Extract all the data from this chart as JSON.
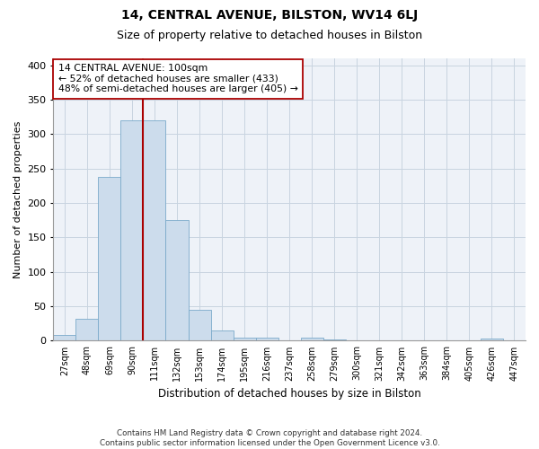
{
  "title": "14, CENTRAL AVENUE, BILSTON, WV14 6LJ",
  "subtitle": "Size of property relative to detached houses in Bilston",
  "xlabel": "Distribution of detached houses by size in Bilston",
  "ylabel": "Number of detached properties",
  "bar_color": "#ccdcec",
  "bar_edge_color": "#7aaaca",
  "grid_color": "#c8d4e0",
  "background_color": "#eef2f8",
  "vline_color": "#aa0000",
  "vline_x_index": 3.5,
  "categories": [
    "27sqm",
    "48sqm",
    "69sqm",
    "90sqm",
    "111sqm",
    "132sqm",
    "153sqm",
    "174sqm",
    "195sqm",
    "216sqm",
    "237sqm",
    "258sqm",
    "279sqm",
    "300sqm",
    "321sqm",
    "342sqm",
    "363sqm",
    "384sqm",
    "405sqm",
    "426sqm",
    "447sqm"
  ],
  "values": [
    8,
    32,
    238,
    320,
    320,
    175,
    45,
    15,
    5,
    5,
    0,
    5,
    2,
    0,
    0,
    0,
    0,
    0,
    0,
    3,
    0
  ],
  "annotation_text": "14 CENTRAL AVENUE: 100sqm\n← 52% of detached houses are smaller (433)\n48% of semi-detached houses are larger (405) →",
  "footer1": "Contains HM Land Registry data © Crown copyright and database right 2024.",
  "footer2": "Contains public sector information licensed under the Open Government Licence v3.0.",
  "ylim": [
    0,
    410
  ],
  "yticks": [
    0,
    50,
    100,
    150,
    200,
    250,
    300,
    350,
    400
  ],
  "title_fontsize": 10,
  "subtitle_fontsize": 9,
  "ylabel_fontsize": 8,
  "xlabel_fontsize": 8.5
}
